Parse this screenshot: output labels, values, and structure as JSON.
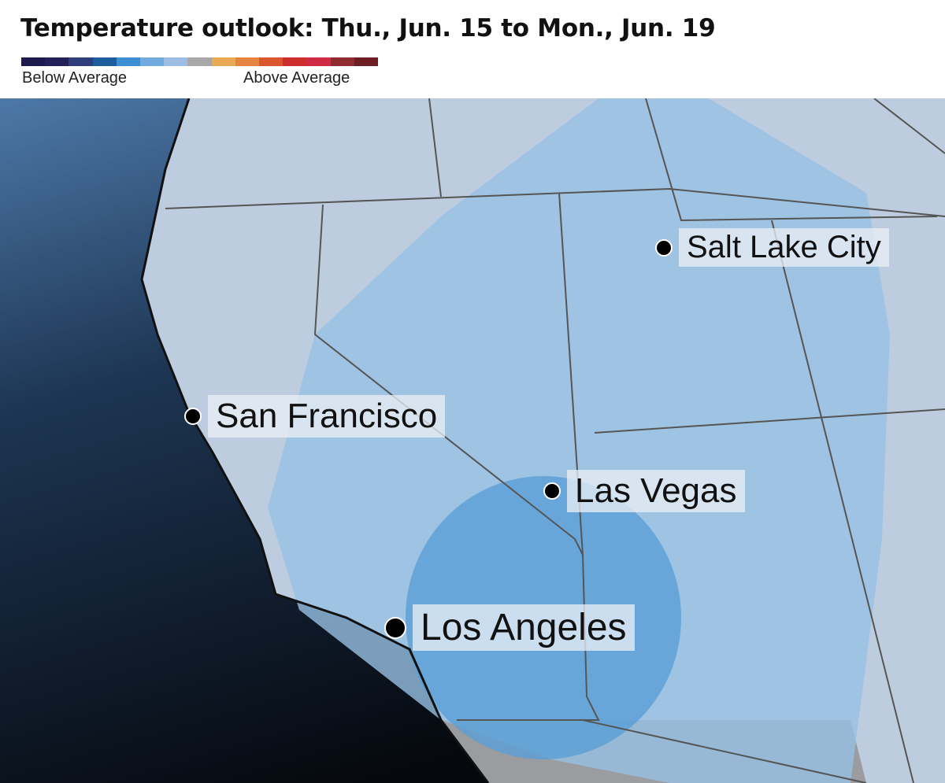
{
  "title": "Temperature outlook: Thu., Jun. 15 to Mon., Jun. 19",
  "legend": {
    "below_label": "Below Average",
    "above_label": "Above Average",
    "colors": [
      "#1e1a4e",
      "#24215a",
      "#2f3f7b",
      "#1f5e9e",
      "#3b8fd2",
      "#70aade",
      "#9dbde4",
      "#a8a8a8",
      "#e9a955",
      "#e5853f",
      "#da562f",
      "#cc2e2d",
      "#d02b45",
      "#8d2b31",
      "#6d1e24"
    ]
  },
  "map": {
    "ocean_color": "#1b2e48",
    "land_color": "#9a9c9f",
    "below_light_color": "#b9d0e6",
    "below_mid_color": "#8fbbe0",
    "below_strong_color": "#4f9bd6"
  },
  "cities": [
    {
      "name": "Salt Lake City"
    },
    {
      "name": "San Francisco"
    },
    {
      "name": "Las Vegas"
    },
    {
      "name": "Los Angeles"
    }
  ]
}
